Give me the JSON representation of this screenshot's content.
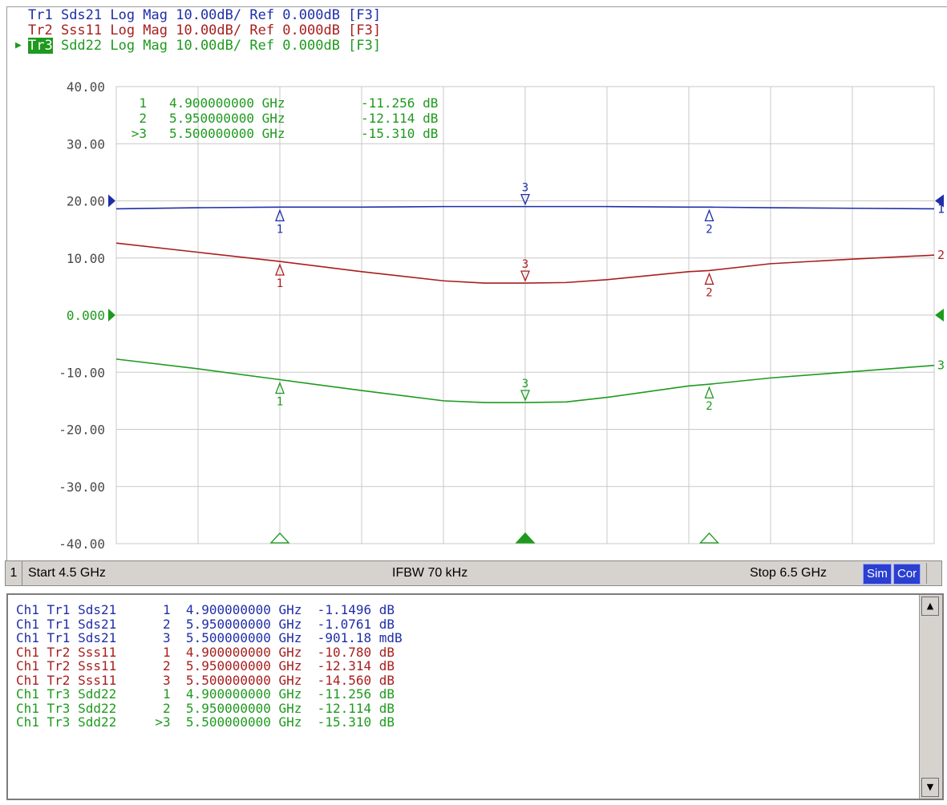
{
  "trace_headers": [
    {
      "id": "Tr1",
      "param": "Sds21",
      "format": "Log Mag",
      "scale": "10.00dB/",
      "ref": "Ref 0.000dB",
      "tag": "[F3]",
      "color": "#1f2ea8"
    },
    {
      "id": "Tr2",
      "param": "Sss11",
      "format": "Log Mag",
      "scale": "10.00dB/",
      "ref": "Ref 0.000dB",
      "tag": "[F3]",
      "color": "#a81e1e"
    },
    {
      "id": "Tr3",
      "param": "Sdd22",
      "format": "Log Mag",
      "scale": "10.00dB/",
      "ref": "Ref 0.000dB",
      "tag": "[F3]",
      "color": "#1e9a1e"
    }
  ],
  "active_trace": "Tr3",
  "colors": {
    "tr1": "#1f2ea8",
    "tr2": "#a81e1e",
    "tr3": "#1e9a1e",
    "grid": "#c8c8c8",
    "panel": "#d6d3ce",
    "button": "#2b3fd1"
  },
  "marker_readout": [
    {
      "marker": "1",
      "freq": "4.900000000 GHz",
      "value": "-11.256 dB"
    },
    {
      "marker": "2",
      "freq": "5.950000000 GHz",
      "value": "-12.114 dB"
    },
    {
      "marker": ">3",
      "freq": "5.500000000 GHz",
      "value": "-15.310 dB"
    }
  ],
  "chart_data": {
    "type": "line",
    "xlabel": "",
    "ylabel": "",
    "x_range": [
      4.5,
      6.5
    ],
    "ylim": [
      -40,
      40
    ],
    "y_ticks": [
      "40.00",
      "30.00",
      "20.00",
      "10.00",
      "0.000",
      "-10.00",
      "-20.00",
      "-30.00",
      "-40.00"
    ],
    "grid": true,
    "x": [
      4.5,
      4.7,
      4.9,
      5.1,
      5.3,
      5.4,
      5.5,
      5.6,
      5.7,
      5.9,
      5.95,
      6.1,
      6.3,
      6.5
    ],
    "series": [
      {
        "name": "Tr1",
        "values": [
          18.6,
          18.8,
          18.9,
          18.9,
          19.0,
          19.0,
          19.0,
          19.0,
          19.0,
          18.9,
          18.9,
          18.8,
          18.7,
          18.6
        ]
      },
      {
        "name": "Tr2",
        "values": [
          12.6,
          11.0,
          9.4,
          7.6,
          6.0,
          5.6,
          5.6,
          5.7,
          6.2,
          7.6,
          7.8,
          9.0,
          9.8,
          10.5
        ]
      },
      {
        "name": "Tr3",
        "values": [
          -7.7,
          -9.4,
          -11.3,
          -13.2,
          -15.0,
          -15.3,
          -15.3,
          -15.2,
          -14.4,
          -12.4,
          -12.1,
          -11.0,
          -9.9,
          -8.8
        ]
      }
    ],
    "markers": [
      {
        "label": "1",
        "x": 4.9
      },
      {
        "label": "2",
        "x": 5.95
      },
      {
        "label": "3",
        "x": 5.5
      }
    ],
    "trace_end_labels": [
      "1",
      "2",
      "3"
    ],
    "ref_levels": [
      20,
      0
    ]
  },
  "status": {
    "channel": "1",
    "start": "Start 4.5 GHz",
    "ifbw": "IFBW 70 kHz",
    "stop": "Stop 6.5 GHz",
    "sim": "Sim",
    "cor": "Cor"
  },
  "marker_table": [
    {
      "ch": "Ch1",
      "tr": "Tr1",
      "param": "Sds21",
      "m": "1",
      "freq": "4.900000000 GHz",
      "value": "-1.1496",
      "unit": "dB",
      "color": "blue"
    },
    {
      "ch": "Ch1",
      "tr": "Tr1",
      "param": "Sds21",
      "m": "2",
      "freq": "5.950000000 GHz",
      "value": "-1.0761",
      "unit": "dB",
      "color": "blue"
    },
    {
      "ch": "Ch1",
      "tr": "Tr1",
      "param": "Sds21",
      "m": "3",
      "freq": "5.500000000 GHz",
      "value": "-901.18",
      "unit": "mdB",
      "color": "blue"
    },
    {
      "ch": "Ch1",
      "tr": "Tr2",
      "param": "Sss11",
      "m": "1",
      "freq": "4.900000000 GHz",
      "value": "-10.780",
      "unit": "dB",
      "color": "red"
    },
    {
      "ch": "Ch1",
      "tr": "Tr2",
      "param": "Sss11",
      "m": "2",
      "freq": "5.950000000 GHz",
      "value": "-12.314",
      "unit": "dB",
      "color": "red"
    },
    {
      "ch": "Ch1",
      "tr": "Tr2",
      "param": "Sss11",
      "m": "3",
      "freq": "5.500000000 GHz",
      "value": "-14.560",
      "unit": "dB",
      "color": "red"
    },
    {
      "ch": "Ch1",
      "tr": "Tr3",
      "param": "Sdd22",
      "m": "1",
      "freq": "4.900000000 GHz",
      "value": "-11.256",
      "unit": "dB",
      "color": "green"
    },
    {
      "ch": "Ch1",
      "tr": "Tr3",
      "param": "Sdd22",
      "m": "2",
      "freq": "5.950000000 GHz",
      "value": "-12.114",
      "unit": "dB",
      "color": "green"
    },
    {
      "ch": "Ch1",
      "tr": "Tr3",
      "param": "Sdd22",
      "m": ">3",
      "freq": "5.500000000 GHz",
      "value": "-15.310",
      "unit": "dB",
      "color": "green"
    }
  ],
  "scrollbar": {
    "up_icon": "scroll-up-arrow",
    "down_icon": "scroll-down-arrow"
  }
}
